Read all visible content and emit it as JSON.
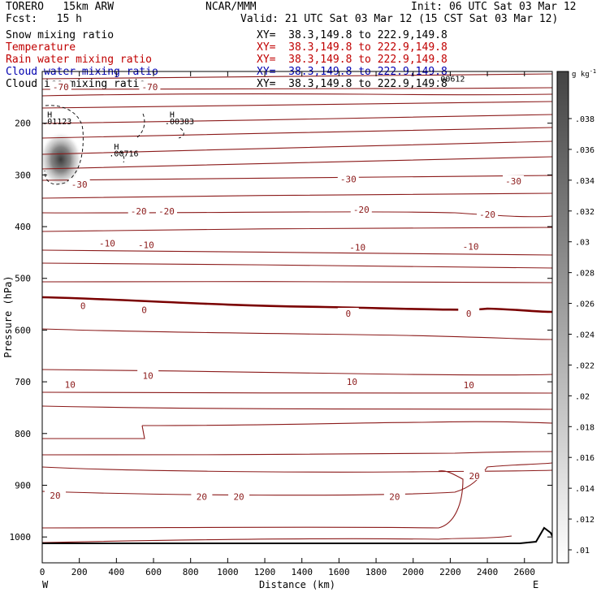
{
  "header": {
    "model": "TORERO   15km ARW",
    "center": "NCAR/MMM",
    "init": "Init: 06 UTC Sat 03 Mar 12",
    "fcst": "Fcst:   15 h",
    "valid": "Valid: 21 UTC Sat 03 Mar 12 (15 CST Sat 03 Mar 12)"
  },
  "legend": [
    {
      "name": "Snow mixing ratio",
      "xy": "XY=  38.3,149.8 to 222.9,149.8",
      "color": "#000000"
    },
    {
      "name": "Temperature",
      "xy": "XY=  38.3,149.8 to 222.9,149.8",
      "color": "#c00000"
    },
    {
      "name": "Rain water mixing ratio",
      "xy": "XY=  38.3,149.8 to 222.9,149.8",
      "color": "#c00000"
    },
    {
      "name": "Cloud water mixing ratio",
      "xy": "XY=  38.3,149.8 to 222.9,149.8",
      "color": "#0000b0"
    },
    {
      "name": "Cloud ice mixing ratio",
      "xy": "XY=  38.3,149.8 to 222.9,149.8",
      "color": "#000000"
    }
  ],
  "chart_data": {
    "type": "heatmap",
    "xlabel": "Distance (km)",
    "ylabel": "Pressure (hPa)",
    "xlim": [
      0,
      2750
    ],
    "ylim": [
      1050,
      100
    ],
    "x_ticks": [
      0,
      200,
      400,
      600,
      800,
      1000,
      1200,
      1400,
      1600,
      1800,
      2000,
      2200,
      2400,
      2600
    ],
    "y_ticks": [
      200,
      300,
      400,
      500,
      600,
      700,
      800,
      900,
      1000
    ],
    "left_end_label": "W",
    "right_end_label": "E",
    "colorbar": {
      "unit": "g kg",
      "unit_exp": "-1",
      "ticks": [
        ".01",
        ".012",
        ".014",
        ".016",
        ".018",
        ".02",
        ".022",
        ".024",
        ".026",
        ".028",
        ".03",
        ".032",
        ".034",
        ".036",
        ".038"
      ]
    },
    "shading_center": {
      "x": 100,
      "p": 270
    },
    "temperature_labels": [
      {
        "text": "-70",
        "x": 100,
        "p": 130
      },
      {
        "text": "-70",
        "x": 580,
        "p": 130
      },
      {
        "text": "-30",
        "x": 200,
        "p": 318
      },
      {
        "text": "-30",
        "x": 1650,
        "p": 308
      },
      {
        "text": "-30",
        "x": 2540,
        "p": 312
      },
      {
        "text": "-20",
        "x": 520,
        "p": 370
      },
      {
        "text": "-20",
        "x": 670,
        "p": 370
      },
      {
        "text": "-20",
        "x": 1720,
        "p": 367
      },
      {
        "text": "-20",
        "x": 2400,
        "p": 376
      },
      {
        "text": "-10",
        "x": 350,
        "p": 432
      },
      {
        "text": "-10",
        "x": 560,
        "p": 435
      },
      {
        "text": "-10",
        "x": 1700,
        "p": 440
      },
      {
        "text": "-10",
        "x": 2310,
        "p": 438
      },
      {
        "text": "0",
        "x": 220,
        "p": 553
      },
      {
        "text": "0",
        "x": 550,
        "p": 561
      },
      {
        "text": "0",
        "x": 1650,
        "p": 568
      },
      {
        "text": "0",
        "x": 2300,
        "p": 568
      },
      {
        "text": "10",
        "x": 150,
        "p": 705
      },
      {
        "text": "10",
        "x": 570,
        "p": 688
      },
      {
        "text": "10",
        "x": 1670,
        "p": 700
      },
      {
        "text": "10",
        "x": 2300,
        "p": 706
      },
      {
        "text": "20",
        "x": 70,
        "p": 920
      },
      {
        "text": "20",
        "x": 860,
        "p": 922
      },
      {
        "text": "20",
        "x": 1060,
        "p": 922
      },
      {
        "text": "20",
        "x": 1900,
        "p": 922
      },
      {
        "text": "20",
        "x": 2330,
        "p": 882
      }
    ],
    "maxima_labels": [
      {
        "text": "H",
        "x": 40,
        "p": 189
      },
      {
        "text": ".01123",
        "x": 80,
        "p": 202
      },
      {
        "text": "H",
        "x": 400,
        "p": 251
      },
      {
        "text": ".00716",
        "x": 440,
        "p": 264
      },
      {
        "text": "H",
        "x": 700,
        "p": 189
      },
      {
        "text": ".00383",
        "x": 740,
        "p": 202
      },
      {
        "text": ".00612",
        "x": 2200,
        "p": 120
      }
    ]
  }
}
